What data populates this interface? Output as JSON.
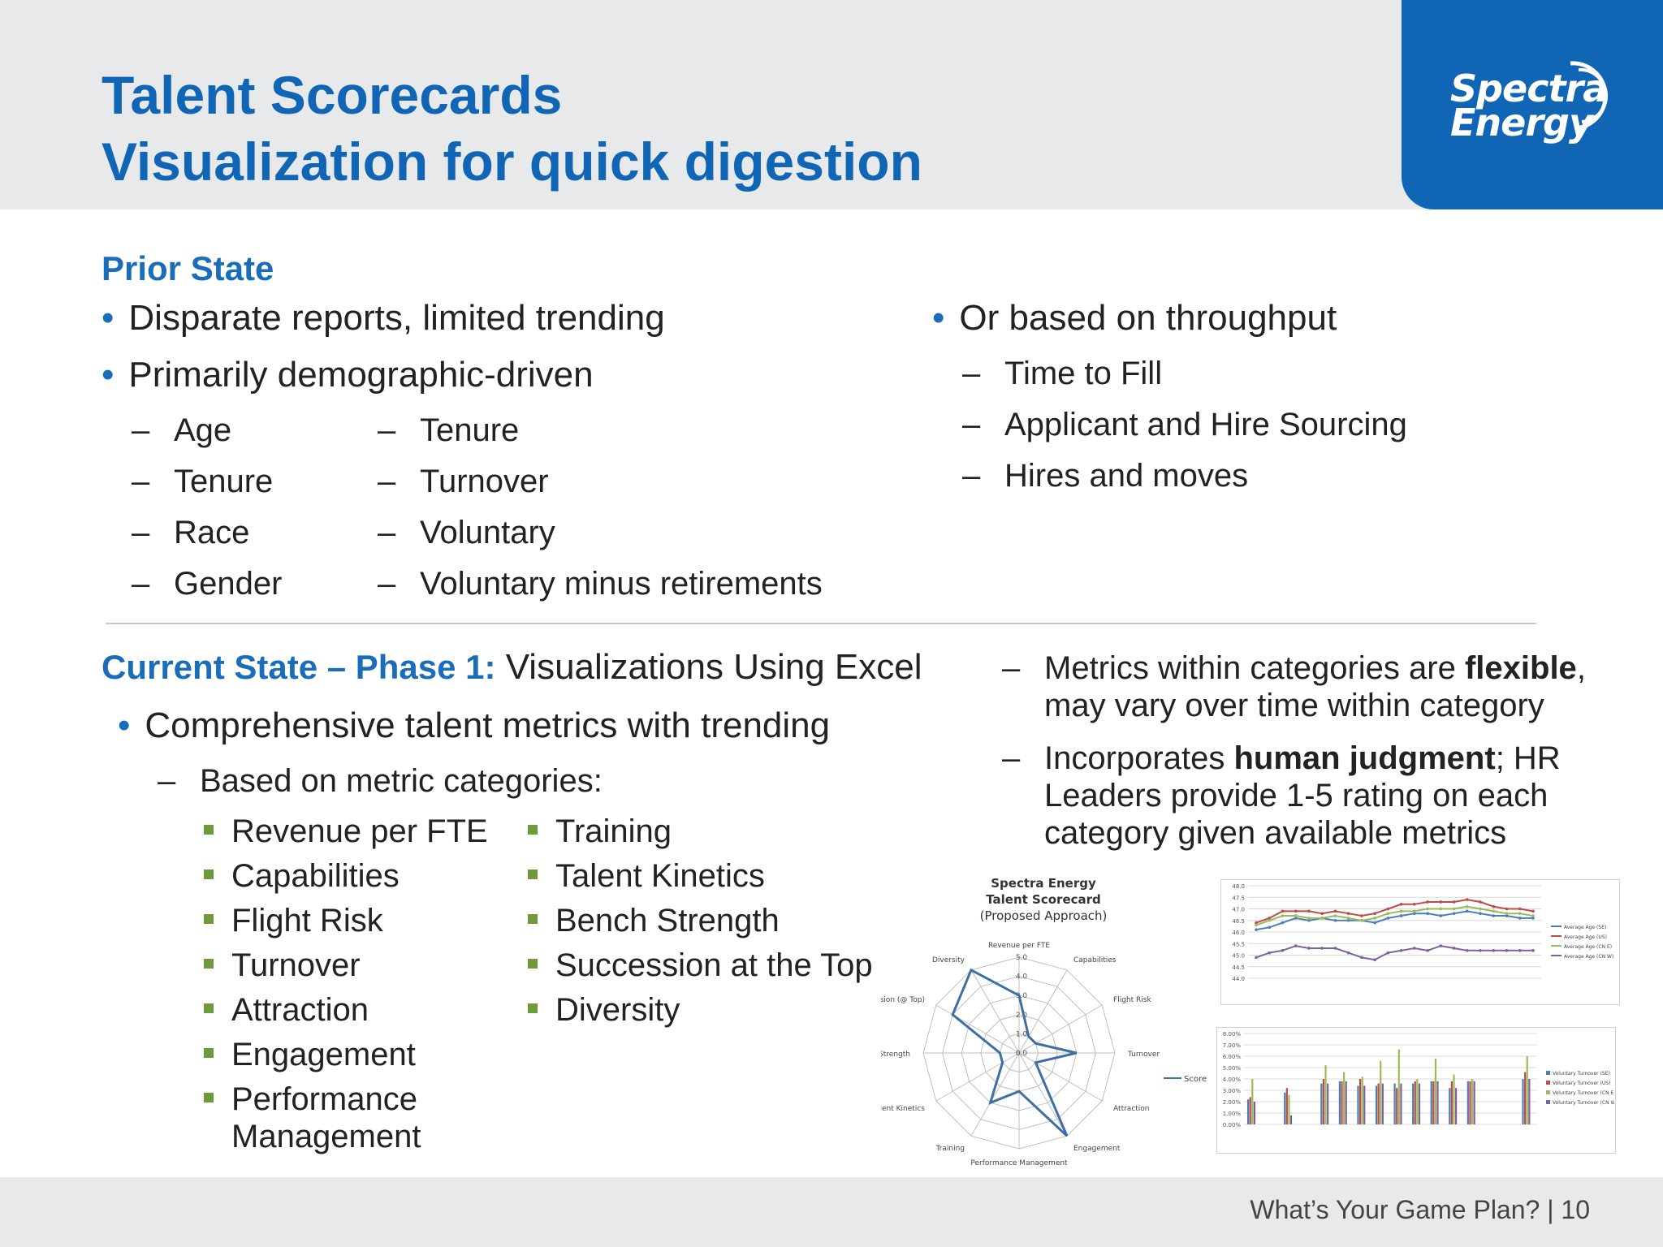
{
  "header": {
    "title": "Talent Scorecards",
    "subtitle": "Visualization for quick digestion",
    "logo_line1": "Spectra",
    "logo_line2": "Energy",
    "brand_color": "#1066b4"
  },
  "prior_state": {
    "heading": "Prior State",
    "bullets": [
      "Disparate reports, limited trending",
      "Primarily demographic-driven"
    ],
    "demographic_col1": [
      "Age",
      "Tenure",
      "Race",
      "Gender"
    ],
    "demographic_col2": [
      "Tenure",
      "Turnover",
      "Voluntary",
      "Voluntary minus retirements"
    ],
    "throughput_bullet": "Or based on throughput",
    "throughput_items": [
      "Time to Fill",
      "Applicant and Hire Sourcing",
      "Hires and moves"
    ]
  },
  "current_state": {
    "heading_bold": "Current State – Phase 1:",
    "heading_rest": " Visualizations Using Excel",
    "bullet": "Comprehensive talent metrics with trending",
    "sub_bullet": "Based on metric categories:",
    "categories_col1": [
      "Revenue per FTE",
      "Capabilities",
      "Flight Risk",
      "Turnover",
      "Attraction",
      "Engagement",
      "Performance",
      "Management"
    ],
    "categories_col2": [
      "Training",
      "Talent Kinetics",
      "Bench Strength",
      "Succession at the Top",
      "Diversity"
    ],
    "note1_a": "Metrics within categories are ",
    "note1_b": "flexible",
    "note1_c": ",",
    "note1_line2": "may vary over time within category",
    "note2_a": "Incorporates ",
    "note2_b": "human judgment",
    "note2_c": "; HR",
    "note2_line2": "Leaders provide 1-5 rating on each",
    "note2_line3": "category given available metrics"
  },
  "footer": {
    "text": "What’s Your Game Plan?  |  10"
  },
  "chart_data": [
    {
      "type": "radar",
      "title": "Spectra Energy Talent Scorecard (Proposed Approach)",
      "title_lines": [
        "Spectra Energy",
        "Talent Scorecard",
        "(Proposed Approach)"
      ],
      "axes": [
        "Revenue per FTE",
        "Capabilities",
        "Flight Risk",
        "Turnover",
        "Attraction",
        "Engagement",
        "Performance Management",
        "Training",
        "Talent Kinetics",
        "Bench Strength",
        "Succession (@ Top)",
        "Diversity"
      ],
      "ticks": [
        "0.0",
        "1.0",
        "2.0",
        "3.0",
        "4.0",
        "5.0"
      ],
      "range": [
        0,
        5
      ],
      "series": [
        {
          "name": "Score",
          "values": [
            3.0,
            1.0,
            1.0,
            3.0,
            1.0,
            5.0,
            2.0,
            3.0,
            1.0,
            1.0,
            4.0,
            5.0
          ],
          "color": "#3d6fa3"
        }
      ]
    },
    {
      "type": "line",
      "y_ticks": [
        "48.0",
        "47.5",
        "47.0",
        "46.5",
        "46.0",
        "45.5",
        "45.0",
        "44.5",
        "44.0"
      ],
      "ylim": [
        44.0,
        48.0
      ],
      "series": [
        {
          "name": "Average Age (SE)",
          "color": "#4a7ebb",
          "values": [
            46.1,
            46.2,
            46.4,
            46.6,
            46.5,
            46.6,
            46.5,
            46.5,
            46.5,
            46.4,
            46.6,
            46.7,
            46.8,
            46.8,
            46.7,
            46.8,
            46.9,
            46.8,
            46.7,
            46.7,
            46.6,
            46.6
          ]
        },
        {
          "name": "Average Age (US)",
          "color": "#be4b48",
          "values": [
            46.4,
            46.6,
            46.9,
            46.9,
            46.9,
            46.8,
            46.9,
            46.8,
            46.7,
            46.8,
            47.0,
            47.2,
            47.2,
            47.3,
            47.3,
            47.3,
            47.4,
            47.3,
            47.1,
            47.0,
            47.0,
            46.9
          ]
        },
        {
          "name": "Average Age (CN E)",
          "color": "#9bbb59",
          "values": [
            46.3,
            46.5,
            46.7,
            46.7,
            46.6,
            46.6,
            46.7,
            46.6,
            46.5,
            46.6,
            46.8,
            46.9,
            46.9,
            47.0,
            47.0,
            47.0,
            47.1,
            47.0,
            46.9,
            46.8,
            46.8,
            46.7
          ]
        },
        {
          "name": "Average Age (CN W)",
          "color": "#7d60a0",
          "values": [
            44.9,
            45.1,
            45.2,
            45.4,
            45.3,
            45.3,
            45.3,
            45.1,
            44.9,
            44.8,
            45.1,
            45.2,
            45.3,
            45.2,
            45.4,
            45.3,
            45.2,
            45.2,
            45.2,
            45.2,
            45.2,
            45.2
          ]
        }
      ]
    },
    {
      "type": "bar",
      "y_ticks": [
        "8.00%",
        "7.00%",
        "6.00%",
        "5.00%",
        "4.00%",
        "3.00%",
        "2.00%",
        "1.00%",
        "0.00%"
      ],
      "ylim": [
        0,
        8
      ],
      "series": [
        {
          "name": "Voluntary Turnover (SE)",
          "color": "#4a7ebb"
        },
        {
          "name": "Voluntary Turnover (US)",
          "color": "#be4b48"
        },
        {
          "name": "Voluntary Turnover (CN E)",
          "color": "#9bbb59"
        },
        {
          "name": "Voluntary Turnover (CN W)",
          "color": "#7d60a0"
        }
      ]
    }
  ]
}
